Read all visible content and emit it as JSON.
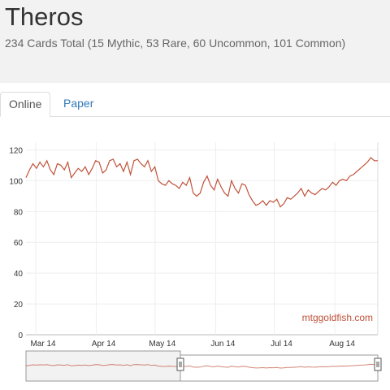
{
  "header": {
    "title": "Theros",
    "subtitle": "234 Cards Total (15 Mythic, 53 Rare, 60 Uncommon, 101 Common)"
  },
  "tabs": [
    {
      "label": "Online",
      "active": true
    },
    {
      "label": "Paper",
      "active": false
    }
  ],
  "watermark": "mtggoldfish.com",
  "colors": {
    "line": "#c0533a",
    "link": "#337ab7",
    "navigator_fill": "#f2f2f2"
  },
  "chart_data": {
    "type": "line",
    "title": "",
    "xlabel": "",
    "ylabel": "",
    "ylim": [
      0,
      125
    ],
    "yticks": [
      0,
      20,
      40,
      60,
      80,
      100,
      120
    ],
    "xticks": [
      {
        "label": "Mar 14",
        "day": 5
      },
      {
        "label": "Apr 14",
        "day": 36
      },
      {
        "label": "May 14",
        "day": 66
      },
      {
        "label": "Jun 14",
        "day": 97
      },
      {
        "label": "Jul 14",
        "day": 127
      },
      {
        "label": "Aug 14",
        "day": 158
      }
    ],
    "x_range_days": [
      0,
      180
    ],
    "grid": true,
    "series": [
      {
        "values": [
          102,
          107,
          111,
          108,
          112,
          109,
          113,
          107,
          104,
          111,
          110,
          107,
          112,
          102,
          105,
          108,
          106,
          109,
          104,
          108,
          113,
          112,
          105,
          107,
          113,
          114,
          109,
          111,
          106,
          112,
          104,
          113,
          114,
          111,
          109,
          113,
          106,
          109,
          100,
          98,
          97,
          100,
          98,
          97,
          95,
          99,
          97,
          102,
          92,
          90,
          92,
          99,
          103,
          97,
          94,
          101,
          96,
          92,
          90,
          100,
          95,
          92,
          98,
          97,
          91,
          87,
          84,
          85,
          87,
          84,
          87,
          86,
          88,
          83,
          85,
          89,
          88,
          90,
          92,
          95,
          90,
          94,
          92,
          91,
          93,
          95,
          94,
          96,
          99,
          97,
          100,
          101,
          100,
          103,
          104,
          106,
          108,
          110,
          112,
          115,
          113,
          113
        ]
      }
    ]
  }
}
